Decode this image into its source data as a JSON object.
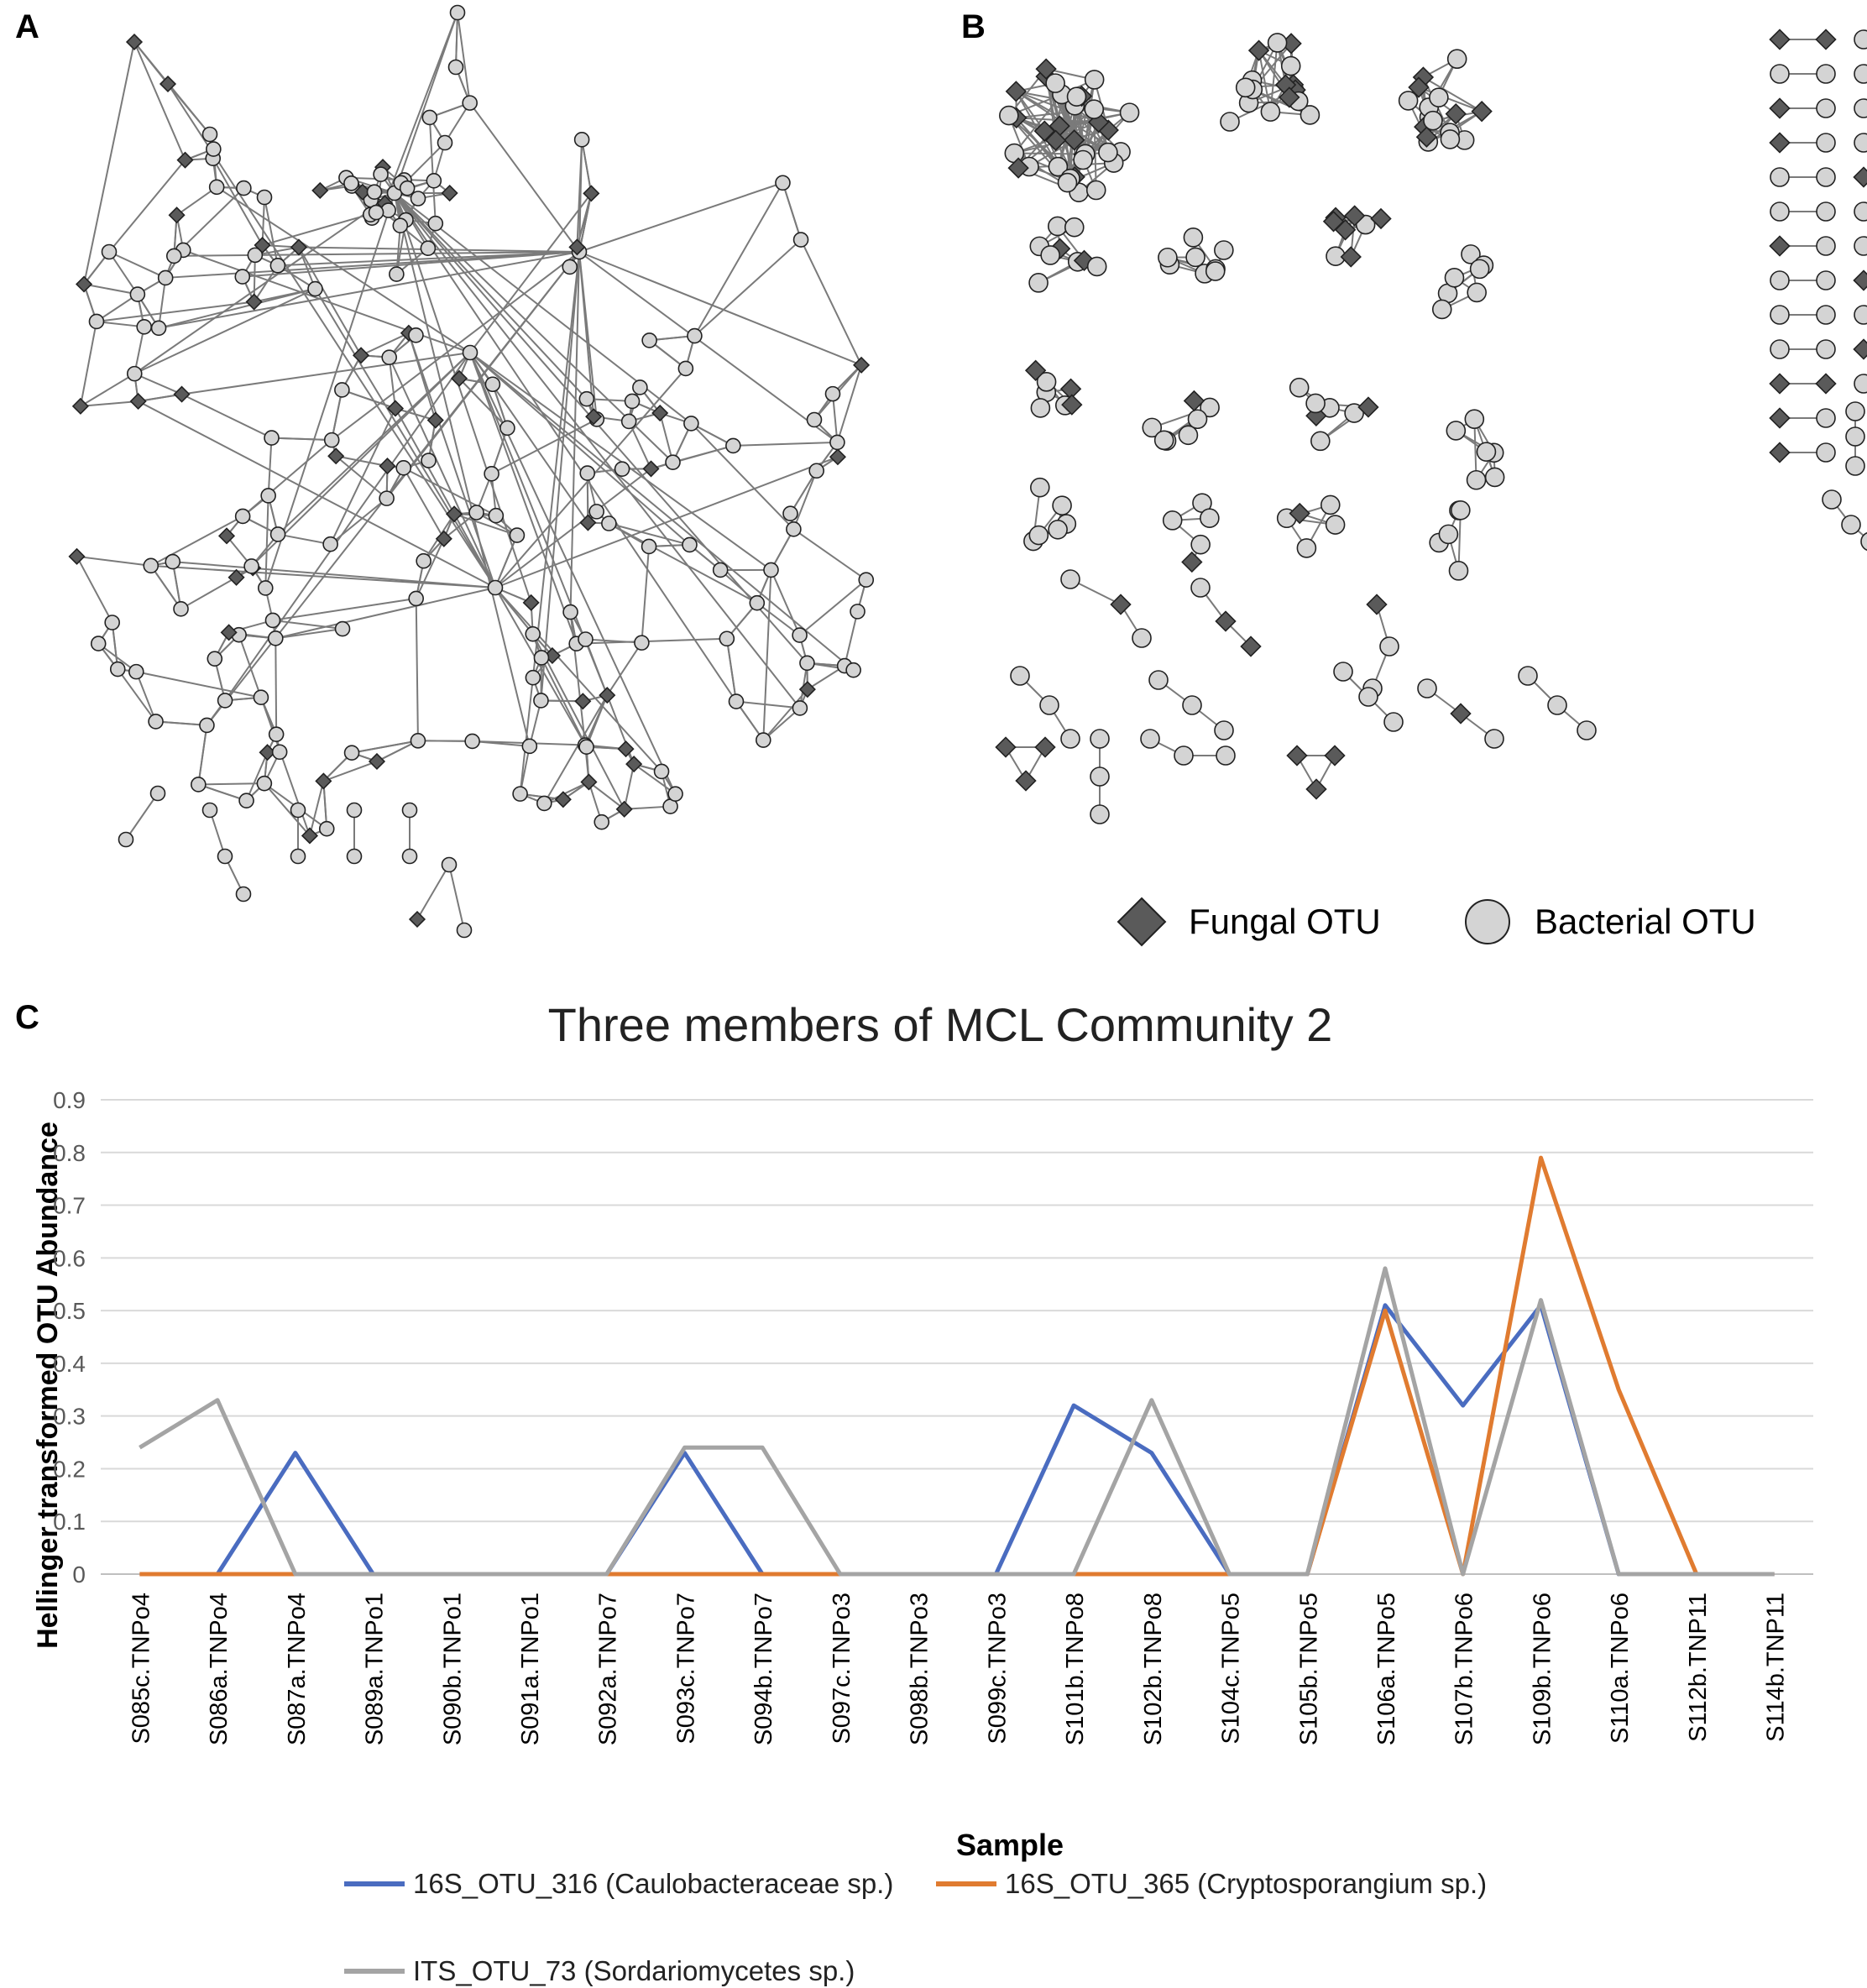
{
  "panels": {
    "a": "A",
    "b": "B",
    "c": "C"
  },
  "network_legend": {
    "fungal_label": "Fungal OTU",
    "bacterial_label": "Bacterial OTU",
    "fungal_color": "#5a5a5a",
    "bacterial_color": "#d4d4d4"
  },
  "chart_data": {
    "type": "line",
    "title": "Three members of MCL Community 2",
    "xlabel": "Sample",
    "ylabel": "Hellinger transformed OTU Abundance",
    "ylim": [
      0,
      0.9
    ],
    "yticks": [
      "0",
      "0.1",
      "0.2",
      "0.3",
      "0.4",
      "0.5",
      "0.6",
      "0.7",
      "0.8",
      "0.9"
    ],
    "grid": true,
    "legend_position": "bottom",
    "categories": [
      "S085c.TNPo4",
      "S086a.TNPo4",
      "S087a.TNPo4",
      "S089a.TNPo1",
      "S090b.TNPo1",
      "S091a.TNPo1",
      "S092a.TNPo7",
      "S093c.TNPo7",
      "S094b.TNPo7",
      "S097c.TNPo3",
      "S098b.TNPo3",
      "S099c.TNPo3",
      "S101b.TNPo8",
      "S102b.TNPo8",
      "S104c.TNPo5",
      "S105b.TNPo5",
      "S106a.TNPo5",
      "S107b.TNPo6",
      "S109b.TNPo6",
      "S110a.TNPo6",
      "S112b.TNP11",
      "S114b.TNP11"
    ],
    "series": [
      {
        "name": "16S_OTU_316 (Caulobacteraceae sp.)",
        "color": "#4a6cc0",
        "values": [
          0,
          0,
          0.23,
          0,
          0,
          0,
          0,
          0.23,
          0,
          0,
          0,
          0,
          0.32,
          0.23,
          0,
          0,
          0.51,
          0.32,
          0.51,
          0,
          0,
          0
        ]
      },
      {
        "name": "16S_OTU_365 (Cryptosporangium sp.)",
        "color": "#e07b30",
        "values": [
          0,
          0,
          0,
          0,
          0,
          0,
          0,
          0,
          0,
          0,
          0,
          0,
          0,
          0,
          0,
          0,
          0.5,
          0,
          0.79,
          0.35,
          0,
          0
        ]
      },
      {
        "name": "ITS_OTU_73 (Sordariomycetes sp.)",
        "color": "#a4a4a4",
        "values": [
          0.24,
          0.33,
          0,
          0,
          0,
          0,
          0,
          0.24,
          0.24,
          0,
          0,
          0,
          0,
          0.33,
          0,
          0,
          0.58,
          0,
          0.52,
          0,
          0,
          0
        ]
      }
    ]
  }
}
